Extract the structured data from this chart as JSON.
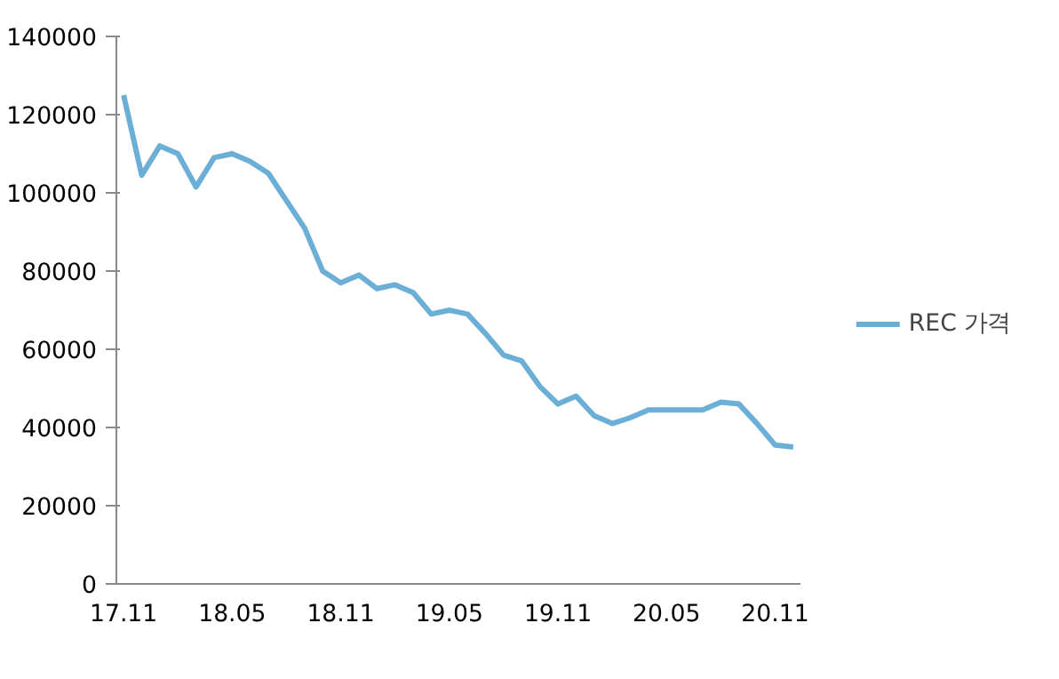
{
  "chart_data": {
    "type": "line",
    "categories": [
      "17.11",
      null,
      null,
      null,
      null,
      null,
      "18.05",
      null,
      null,
      null,
      null,
      null,
      "18.11",
      null,
      null,
      null,
      null,
      null,
      "19.05",
      null,
      null,
      null,
      null,
      null,
      "19.11",
      null,
      null,
      null,
      null,
      null,
      "20.05",
      null,
      null,
      null,
      null,
      null,
      "20.11",
      null
    ],
    "series": [
      {
        "name": "REC 가격",
        "color": "#6baed6",
        "values": [
          125000,
          104500,
          112000,
          110000,
          101500,
          109000,
          110000,
          108000,
          105000,
          98000,
          91000,
          80000,
          77000,
          79000,
          75500,
          76500,
          74500,
          69000,
          70000,
          69000,
          64000,
          58500,
          57000,
          50500,
          46000,
          48000,
          43000,
          41000,
          42500,
          44500,
          44500,
          44500,
          44500,
          46500,
          46000,
          41000,
          35500,
          35000
        ]
      }
    ],
    "ylim": [
      0,
      140000
    ],
    "yticks": [
      0,
      20000,
      40000,
      60000,
      80000,
      100000,
      120000,
      140000
    ],
    "grid": false,
    "legend": "right",
    "marker": "none",
    "line_style": "solid"
  }
}
